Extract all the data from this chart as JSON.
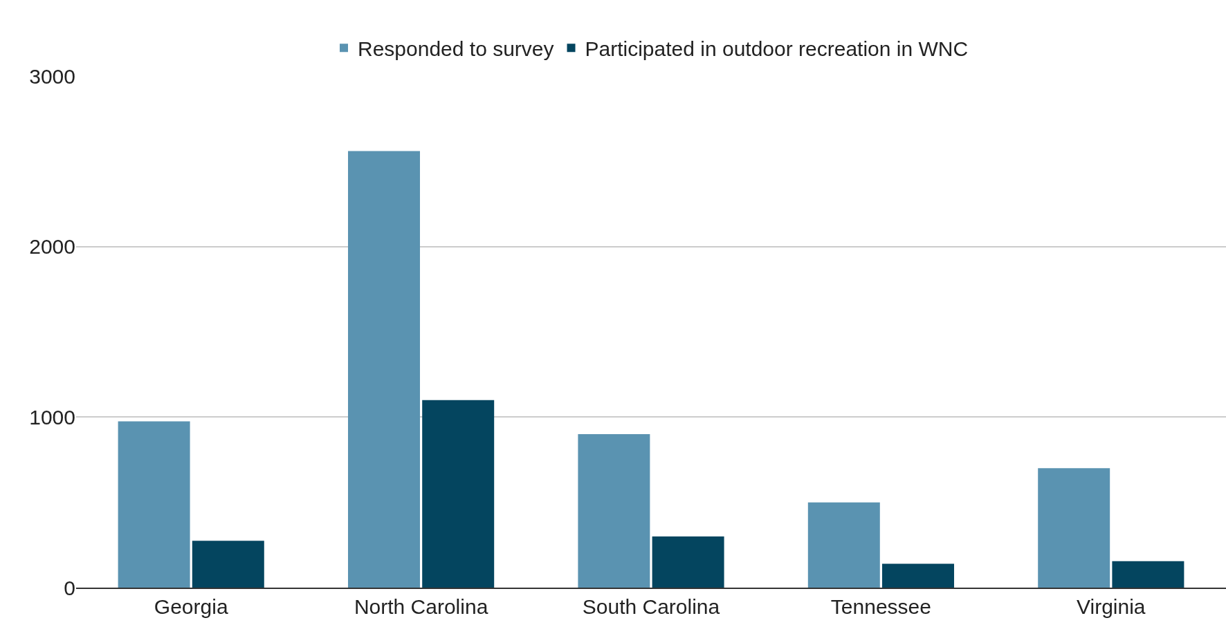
{
  "chart_data": {
    "type": "bar",
    "categories": [
      "Georgia",
      "North Carolina",
      "South Carolina",
      "Tennessee",
      "Virginia"
    ],
    "series": [
      {
        "name": "Responded to survey",
        "color": "#5a93b1",
        "values": [
          975,
          2560,
          900,
          500,
          700
        ]
      },
      {
        "name": "Participated in outdoor recreation in WNC",
        "color": "#04455f",
        "values": [
          275,
          1100,
          300,
          140,
          155
        ]
      }
    ],
    "ylim": [
      0,
      3000
    ],
    "yticks": [
      0,
      1000,
      2000,
      3000
    ],
    "grid": "y",
    "legend": "top"
  }
}
